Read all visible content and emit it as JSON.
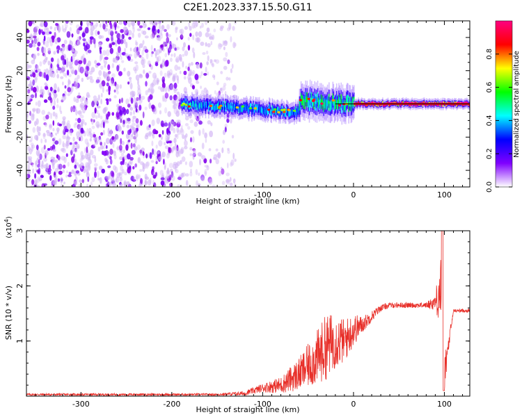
{
  "title": "C2E1.2023.337.15.50.G11",
  "colors": {
    "snr_line": "#e8302a",
    "background": "#ffffff",
    "axis": "#000000"
  },
  "chart_data": [
    {
      "type": "heatmap",
      "xlabel": "Height of straight line (km)",
      "ylabel": "Frequency (Hz)",
      "xlim": [
        -360,
        128
      ],
      "ylim": [
        -50,
        50
      ],
      "x_ticks": [
        -300,
        -200,
        -100,
        0,
        100
      ],
      "x_tick_labels": [
        "-300",
        "-200",
        "-100",
        "0",
        "100"
      ],
      "y_ticks": [
        -40,
        -20,
        0,
        20,
        40
      ],
      "y_tick_labels": [
        "-40",
        "-20",
        "0",
        "20",
        "40"
      ],
      "colorbar": {
        "label": "Normalized spectral amplitude",
        "range": [
          0,
          1
        ],
        "ticks": [
          0.0,
          0.2,
          0.4,
          0.6,
          0.8
        ],
        "tick_labels": [
          "0.0",
          "0.2",
          "0.4",
          "0.6",
          "0.8"
        ],
        "colormap": [
          "#ffffff",
          "#8000ff",
          "#0000ff",
          "#00ffff",
          "#00ff00",
          "#ffff00",
          "#ff0000",
          "#ff0080"
        ]
      },
      "regions": [
        {
          "x": [
            -360,
            -190
          ],
          "freq_spread": [
            -50,
            50
          ],
          "amplitude": 0.1,
          "description": "broadband noise"
        },
        {
          "x": [
            -190,
            -130
          ],
          "freq_spread": [
            -50,
            50
          ],
          "amplitude": 0.05,
          "description": "faint noise"
        },
        {
          "x": [
            -190,
            -60
          ],
          "center_freq": [
            0,
            -5
          ],
          "bandwidth": 6,
          "amplitude": 0.4
        },
        {
          "x": [
            -60,
            0
          ],
          "center_freq": [
            2,
            0
          ],
          "bandwidth": 10,
          "amplitude": 0.5
        },
        {
          "x": [
            0,
            128
          ],
          "center_freq": [
            0,
            0
          ],
          "bandwidth": 3,
          "amplitude": 0.9
        }
      ],
      "grid": false
    },
    {
      "type": "line",
      "xlabel": "Height of straight line (km)",
      "ylabel": "SNR (10 * v/v)",
      "y_multiplier_label": "(x10^4)",
      "xlim": [
        -360,
        128
      ],
      "ylim": [
        0,
        3
      ],
      "x_ticks": [
        -300,
        -200,
        -100,
        0,
        100
      ],
      "x_tick_labels": [
        "-300",
        "-200",
        "-100",
        "0",
        "100"
      ],
      "y_ticks": [
        1,
        2,
        3
      ],
      "y_tick_labels": [
        "1",
        "2",
        "3"
      ],
      "series": [
        {
          "x": [
            -360,
            -300,
            -250,
            -200,
            -150,
            -120,
            -100,
            -80,
            -60,
            -40,
            -30,
            -20,
            -10,
            0,
            10,
            20,
            30,
            40,
            60,
            80,
            90,
            95,
            98,
            100,
            110,
            128
          ],
          "y": [
            0.03,
            0.03,
            0.03,
            0.03,
            0.03,
            0.05,
            0.15,
            0.2,
            0.4,
            0.7,
            0.9,
            1.0,
            1.0,
            1.2,
            1.3,
            1.45,
            1.6,
            1.65,
            1.65,
            1.65,
            1.7,
            1.9,
            2.2,
            0.4,
            1.55,
            1.55
          ],
          "noise": [
            0.02,
            0.02,
            0.02,
            0.02,
            0.02,
            0.04,
            0.08,
            0.15,
            0.3,
            0.5,
            0.6,
            0.5,
            0.4,
            0.3,
            0.15,
            0.1,
            0.06,
            0.05,
            0.05,
            0.05,
            0.15,
            0.6,
            0.9,
            0.3,
            0.03,
            0.03
          ]
        }
      ],
      "grid": false
    }
  ]
}
